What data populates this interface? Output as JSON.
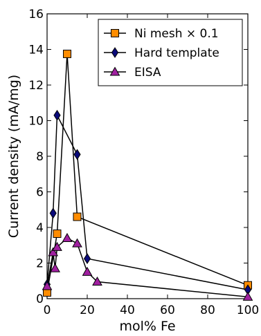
{
  "chart_data": {
    "type": "line",
    "title": "",
    "xlabel": "mol% Fe",
    "ylabel": "Current density (mA/mg)",
    "xlim": [
      0,
      100
    ],
    "ylim": [
      0,
      16
    ],
    "x_ticks": [
      0,
      20,
      40,
      60,
      80,
      100
    ],
    "y_ticks": [
      0,
      2,
      4,
      6,
      8,
      10,
      12,
      14,
      16
    ],
    "grid": false,
    "legend_position": "top-right",
    "series": [
      {
        "name": "Ni mesh  × 0.1",
        "marker": "square",
        "color": "#ff8c00",
        "points": [
          [
            0,
            0.35
          ],
          [
            5,
            3.65
          ],
          [
            10,
            13.75
          ],
          [
            15,
            4.6
          ],
          [
            100,
            0.75
          ]
        ]
      },
      {
        "name": "Hard template",
        "marker": "diamond",
        "color": "#0a0a7a",
        "points": [
          [
            0,
            0.8
          ],
          [
            3,
            4.8
          ],
          [
            5,
            10.3
          ],
          [
            15,
            8.1
          ],
          [
            20,
            2.25
          ],
          [
            100,
            0.5
          ]
        ]
      },
      {
        "name": "EISA",
        "marker": "triangle",
        "color": "#a020a0",
        "points": [
          [
            0,
            0.7
          ],
          [
            3,
            2.6
          ],
          [
            4,
            1.7
          ],
          [
            5,
            2.9
          ],
          [
            10,
            3.4
          ],
          [
            15,
            3.1
          ],
          [
            20,
            1.5
          ],
          [
            25,
            0.95
          ],
          [
            100,
            0.1
          ]
        ]
      }
    ]
  }
}
